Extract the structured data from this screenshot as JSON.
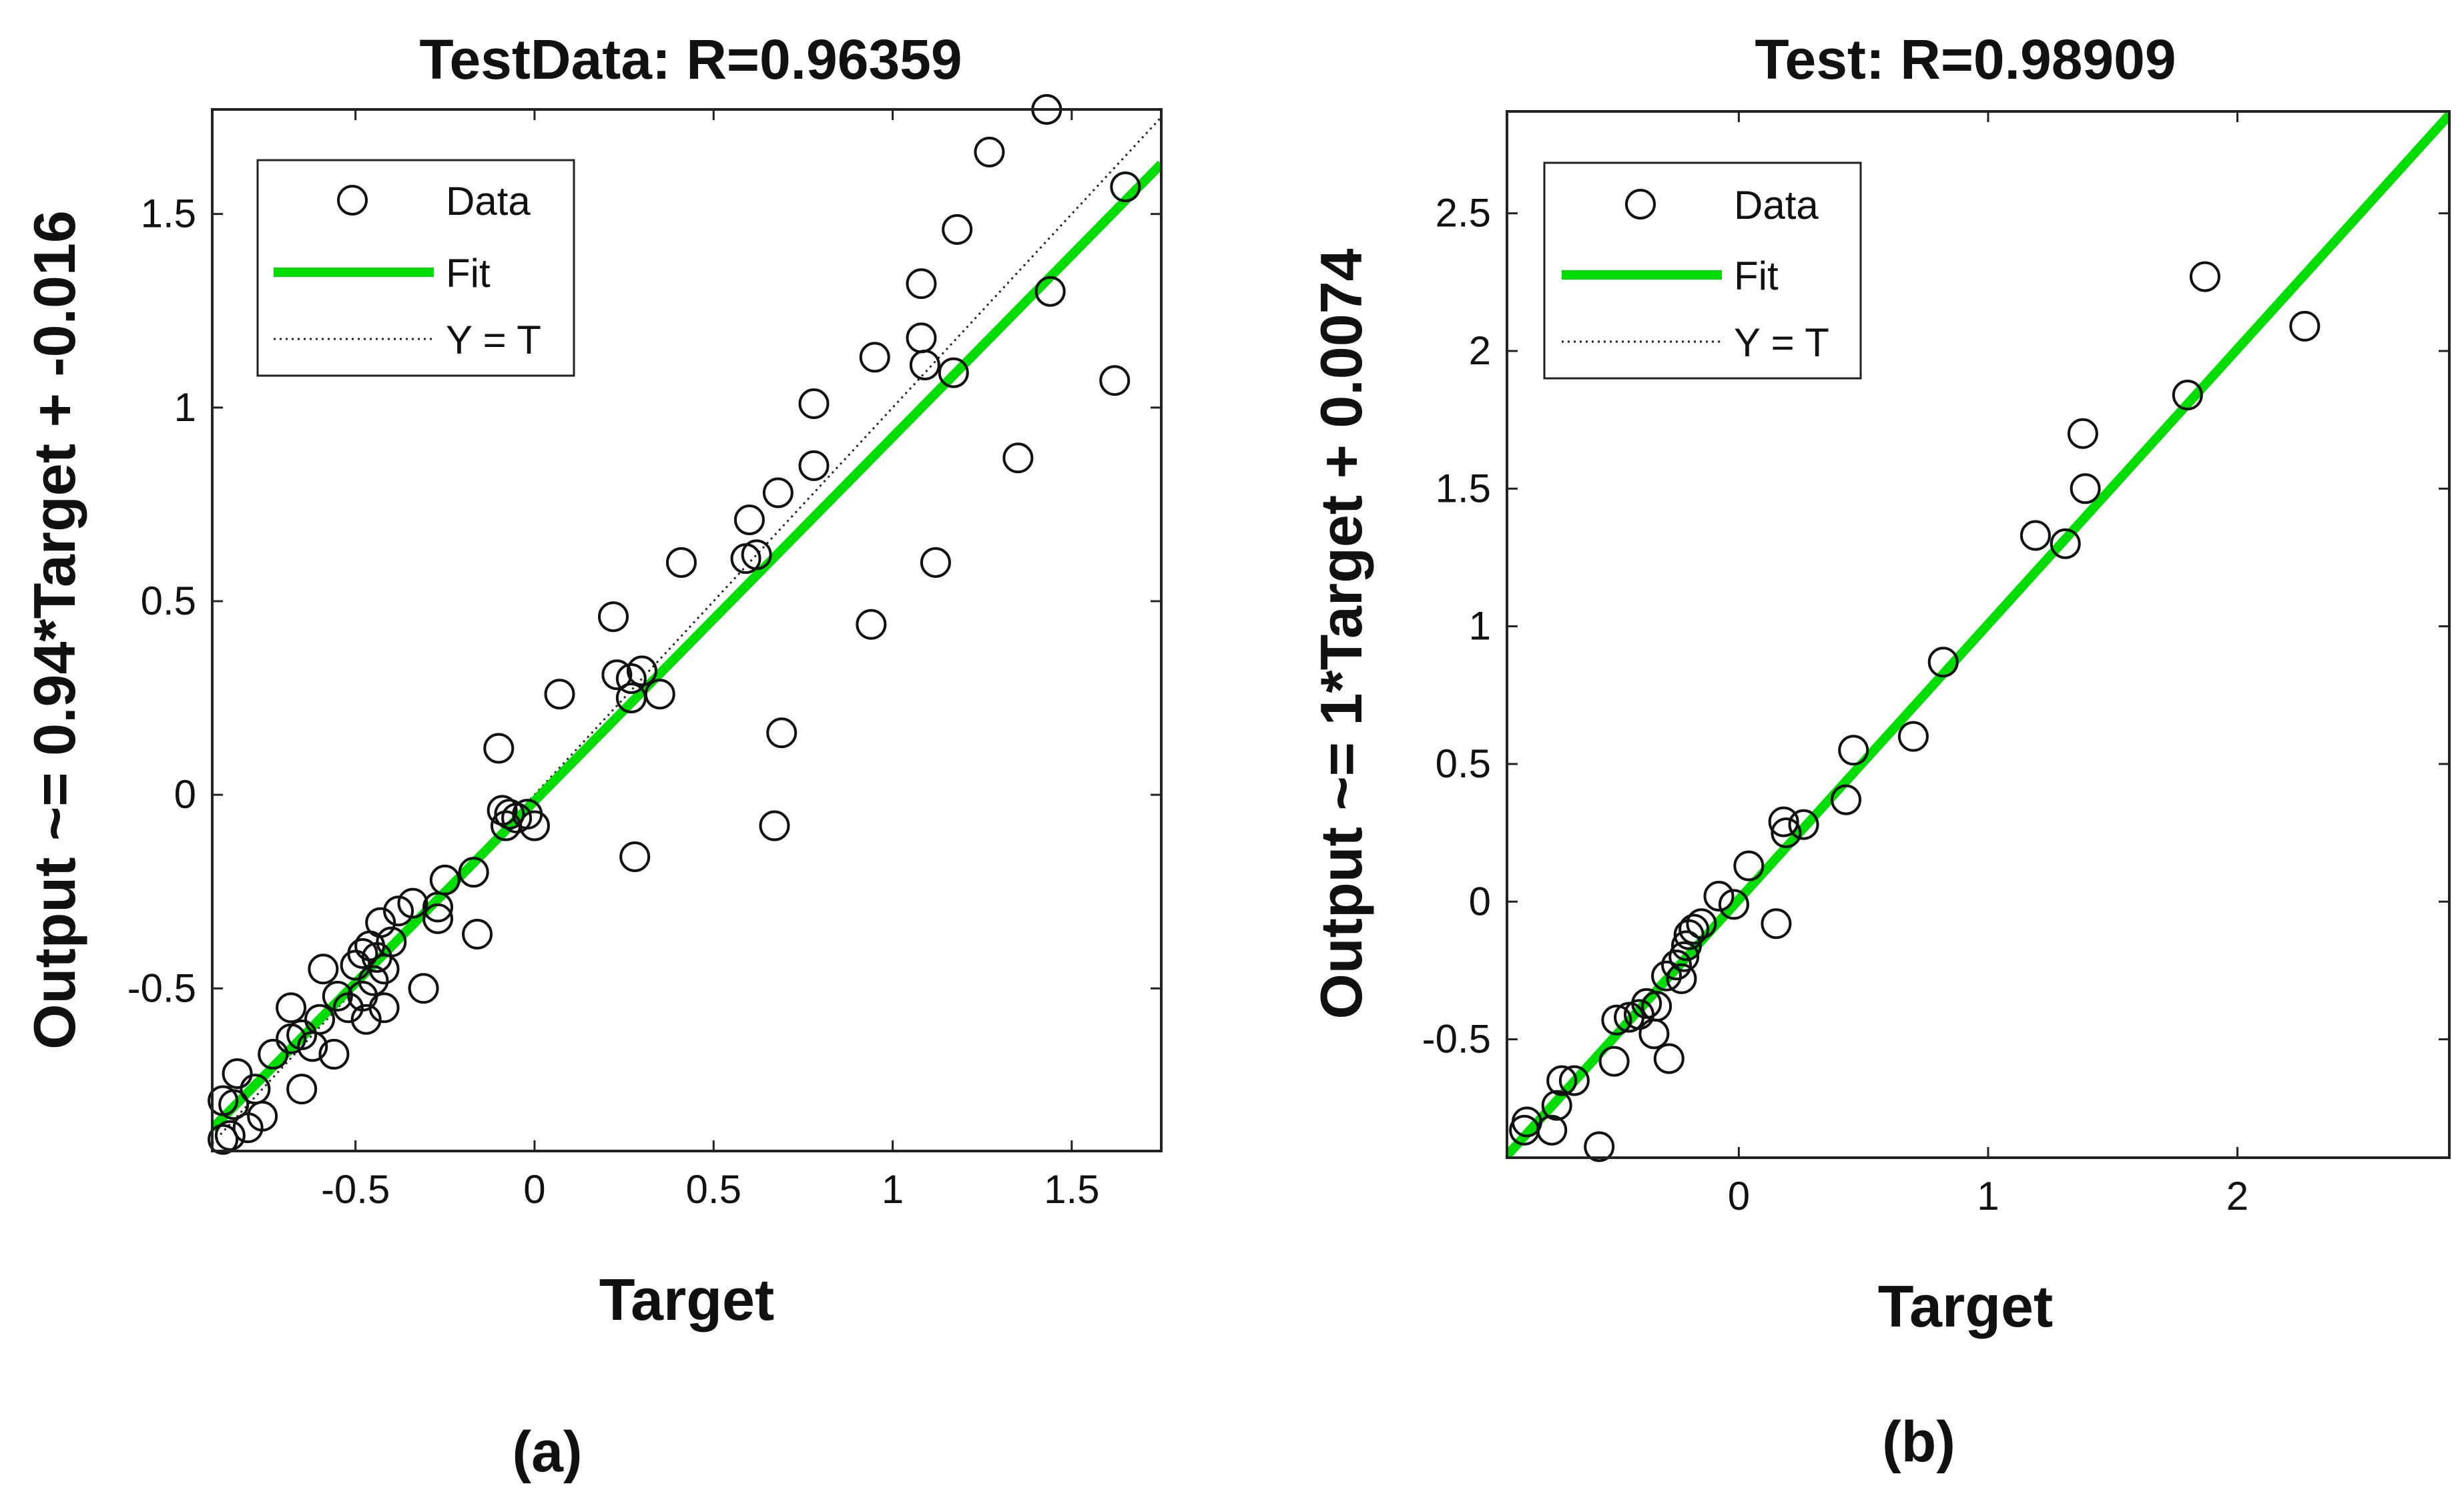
{
  "chart_data": [
    {
      "type": "scatter",
      "panel_label": "(a)",
      "title": "TestData: R=0.96359",
      "xlabel": "Target",
      "ylabel": "Output ~= 0.94*Target + -0.016",
      "xlim": [
        -0.9,
        1.75
      ],
      "ylim": [
        -0.92,
        1.77
      ],
      "xticks": [
        -0.5,
        0,
        0.5,
        1,
        1.5
      ],
      "xtick_labels": [
        "-0.5",
        "0",
        "0.5",
        "1",
        "1.5"
      ],
      "yticks": [
        -0.5,
        0,
        0.5,
        1,
        1.5
      ],
      "ytick_labels": [
        "-0.5",
        "0",
        "0.5",
        "1",
        "1.5"
      ],
      "fit": {
        "slope": 0.94,
        "intercept": -0.016
      },
      "legend": {
        "position": "top-left",
        "entries": [
          "Data",
          "Fit",
          "Y = T"
        ]
      },
      "points": [
        [
          1.43,
          1.77
        ],
        [
          1.27,
          1.66
        ],
        [
          1.65,
          1.57
        ],
        [
          1.18,
          1.46
        ],
        [
          1.08,
          1.32
        ],
        [
          1.44,
          1.3
        ],
        [
          1.08,
          1.18
        ],
        [
          0.95,
          1.13
        ],
        [
          1.09,
          1.11
        ],
        [
          1.17,
          1.09
        ],
        [
          1.62,
          1.07
        ],
        [
          0.78,
          1.01
        ],
        [
          1.35,
          0.87
        ],
        [
          0.78,
          0.85
        ],
        [
          0.68,
          0.78
        ],
        [
          0.6,
          0.71
        ],
        [
          0.62,
          0.62
        ],
        [
          0.59,
          0.61
        ],
        [
          1.12,
          0.6
        ],
        [
          0.41,
          0.6
        ],
        [
          0.22,
          0.46
        ],
        [
          0.94,
          0.44
        ],
        [
          0.23,
          0.31
        ],
        [
          0.3,
          0.32
        ],
        [
          0.27,
          0.3
        ],
        [
          0.27,
          0.25
        ],
        [
          0.35,
          0.26
        ],
        [
          0.07,
          0.26
        ],
        [
          0.69,
          0.16
        ],
        [
          -0.1,
          0.12
        ],
        [
          -0.09,
          -0.04
        ],
        [
          -0.07,
          -0.05
        ],
        [
          -0.05,
          -0.06
        ],
        [
          -0.08,
          -0.08
        ],
        [
          -0.02,
          -0.05
        ],
        [
          0.0,
          -0.08
        ],
        [
          0.67,
          -0.08
        ],
        [
          0.28,
          -0.16
        ],
        [
          -0.17,
          -0.2
        ],
        [
          -0.25,
          -0.22
        ],
        [
          -0.34,
          -0.28
        ],
        [
          -0.27,
          -0.29
        ],
        [
          -0.38,
          -0.3
        ],
        [
          -0.43,
          -0.33
        ],
        [
          -0.27,
          -0.32
        ],
        [
          -0.16,
          -0.36
        ],
        [
          -0.4,
          -0.38
        ],
        [
          -0.46,
          -0.39
        ],
        [
          -0.48,
          -0.41
        ],
        [
          -0.44,
          -0.42
        ],
        [
          -0.5,
          -0.44
        ],
        [
          -0.42,
          -0.45
        ],
        [
          -0.59,
          -0.45
        ],
        [
          -0.45,
          -0.48
        ],
        [
          -0.31,
          -0.5
        ],
        [
          -0.55,
          -0.52
        ],
        [
          -0.48,
          -0.52
        ],
        [
          -0.52,
          -0.55
        ],
        [
          -0.42,
          -0.55
        ],
        [
          -0.68,
          -0.55
        ],
        [
          -0.6,
          -0.58
        ],
        [
          -0.47,
          -0.58
        ],
        [
          -0.65,
          -0.62
        ],
        [
          -0.68,
          -0.63
        ],
        [
          -0.62,
          -0.65
        ],
        [
          -0.56,
          -0.67
        ],
        [
          -0.73,
          -0.67
        ],
        [
          -0.83,
          -0.72
        ],
        [
          -0.78,
          -0.76
        ],
        [
          -0.65,
          -0.76
        ],
        [
          -0.87,
          -0.79
        ],
        [
          -0.84,
          -0.8
        ],
        [
          -0.76,
          -0.83
        ],
        [
          -0.8,
          -0.86
        ],
        [
          -0.85,
          -0.88
        ],
        [
          -0.87,
          -0.89
        ]
      ]
    },
    {
      "type": "scatter",
      "panel_label": "(b)",
      "title": "Test: R=0.98909",
      "xlabel": "Target",
      "ylabel": "Output ~= 1*Target + 0.0074",
      "xlim": [
        -0.93,
        2.85
      ],
      "ylim": [
        -0.93,
        2.87
      ],
      "xticks": [
        0,
        1,
        2
      ],
      "xtick_labels": [
        "0",
        "1",
        "2"
      ],
      "yticks": [
        -0.5,
        0,
        0.5,
        1,
        1.5,
        2,
        2.5
      ],
      "ytick_labels": [
        "-0.5",
        "0",
        "0.5",
        "1",
        "1.5",
        "2",
        "2.5"
      ],
      "fit": {
        "slope": 1,
        "intercept": 0.0074
      },
      "legend": {
        "position": "top-left",
        "entries": [
          "Data",
          "Fit",
          "Y = T"
        ]
      },
      "points": [
        [
          1.87,
          2.27
        ],
        [
          2.27,
          2.09
        ],
        [
          1.8,
          1.84
        ],
        [
          1.38,
          1.7
        ],
        [
          1.39,
          1.5
        ],
        [
          1.19,
          1.33
        ],
        [
          1.31,
          1.3
        ],
        [
          0.82,
          0.87
        ],
        [
          0.7,
          0.6
        ],
        [
          0.46,
          0.55
        ],
        [
          0.43,
          0.37
        ],
        [
          0.26,
          0.28
        ],
        [
          0.18,
          0.29
        ],
        [
          0.19,
          0.25
        ],
        [
          0.15,
          -0.08
        ],
        [
          0.04,
          0.13
        ],
        [
          -0.08,
          0.02
        ],
        [
          -0.02,
          -0.01
        ],
        [
          -0.15,
          -0.08
        ],
        [
          -0.18,
          -0.1
        ],
        [
          -0.2,
          -0.12
        ],
        [
          -0.21,
          -0.16
        ],
        [
          -0.22,
          -0.2
        ],
        [
          -0.25,
          -0.23
        ],
        [
          -0.29,
          -0.27
        ],
        [
          -0.23,
          -0.28
        ],
        [
          -0.37,
          -0.37
        ],
        [
          -0.33,
          -0.38
        ],
        [
          -0.4,
          -0.41
        ],
        [
          -0.44,
          -0.42
        ],
        [
          -0.49,
          -0.43
        ],
        [
          -0.34,
          -0.48
        ],
        [
          -0.5,
          -0.58
        ],
        [
          -0.28,
          -0.57
        ],
        [
          -0.66,
          -0.65
        ],
        [
          -0.71,
          -0.65
        ],
        [
          -0.73,
          -0.74
        ],
        [
          -0.75,
          -0.83
        ],
        [
          -0.85,
          -0.8
        ],
        [
          -0.86,
          -0.83
        ],
        [
          -0.56,
          -0.89
        ]
      ]
    }
  ]
}
